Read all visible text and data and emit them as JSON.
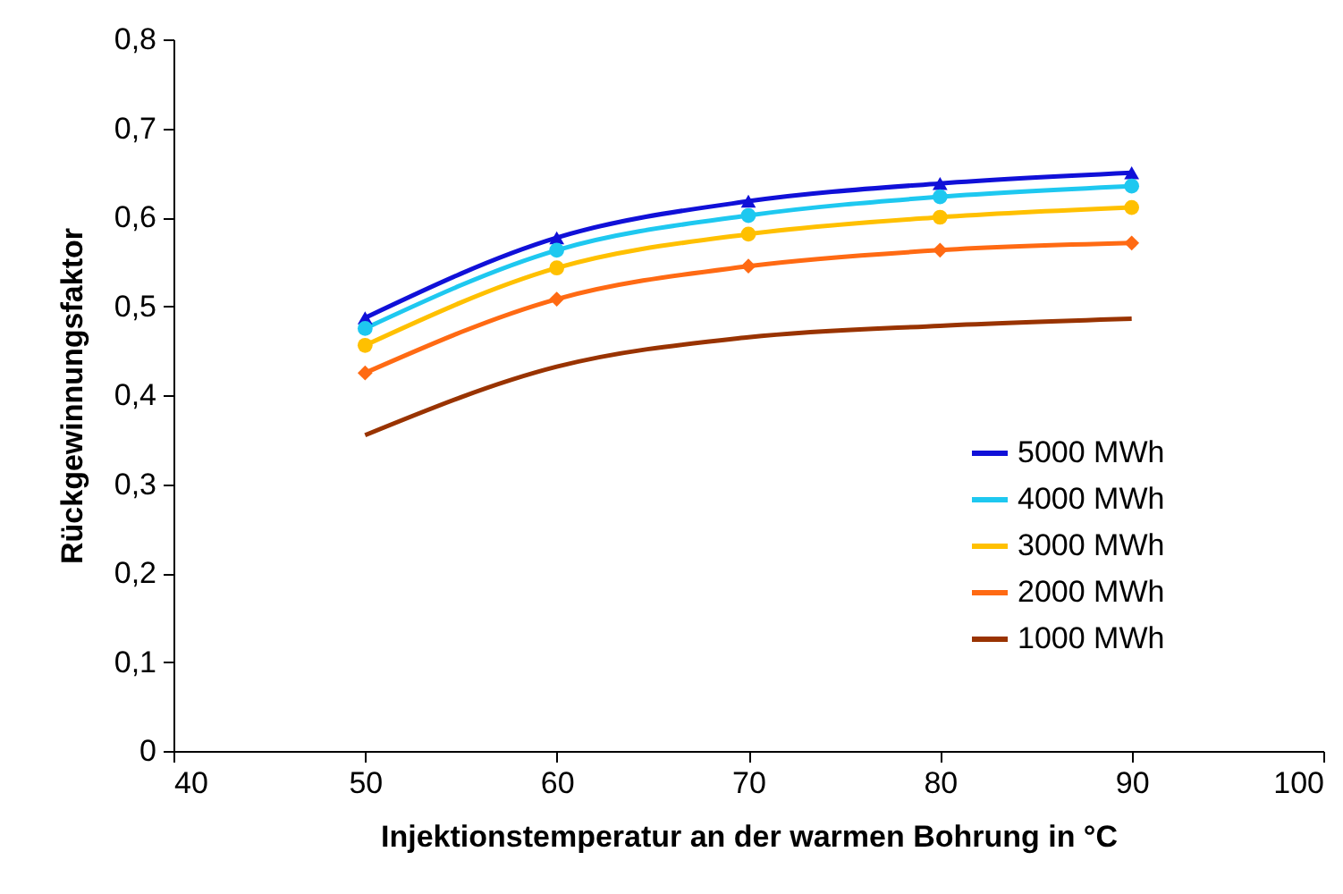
{
  "chart_data": {
    "type": "line",
    "xlabel": "Injektionstemperatur an der warmen Bohrung in °C",
    "ylabel": "Rückgewinnungsfaktor",
    "x": [
      50,
      60,
      70,
      80,
      90
    ],
    "xlim": [
      40,
      100
    ],
    "xticks": [
      40,
      50,
      60,
      70,
      80,
      90,
      100
    ],
    "ylim": [
      0,
      0.8
    ],
    "yticks": [
      {
        "value": 0,
        "label": "0"
      },
      {
        "value": 0.1,
        "label": "0,1"
      },
      {
        "value": 0.2,
        "label": "0,2"
      },
      {
        "value": 0.3,
        "label": "0,3"
      },
      {
        "value": 0.4,
        "label": "0,4"
      },
      {
        "value": 0.5,
        "label": "0,5"
      },
      {
        "value": 0.6,
        "label": "0,6"
      },
      {
        "value": 0.7,
        "label": "0,7"
      },
      {
        "value": 0.8,
        "label": "0,8"
      }
    ],
    "grid": false,
    "legend": "bottom right",
    "line_style": "solid",
    "series": [
      {
        "name": "5000 MWh",
        "color": "#1010d8",
        "marker": "triangle",
        "values": [
          0.487,
          0.577,
          0.618,
          0.638,
          0.65
        ]
      },
      {
        "name": "4000 MWh",
        "color": "#1ec8f0",
        "marker": "circle",
        "values": [
          0.475,
          0.563,
          0.602,
          0.623,
          0.635
        ]
      },
      {
        "name": "3000 MWh",
        "color": "#ffc000",
        "marker": "circle",
        "values": [
          0.456,
          0.543,
          0.581,
          0.6,
          0.611
        ]
      },
      {
        "name": "2000 MWh",
        "color": "#ff6a13",
        "marker": "diamond",
        "values": [
          0.425,
          0.508,
          0.545,
          0.563,
          0.571
        ]
      },
      {
        "name": "1000 MWh",
        "color": "#993300",
        "marker": "none",
        "values": [
          0.355,
          0.432,
          0.465,
          0.478,
          0.486
        ]
      }
    ]
  }
}
